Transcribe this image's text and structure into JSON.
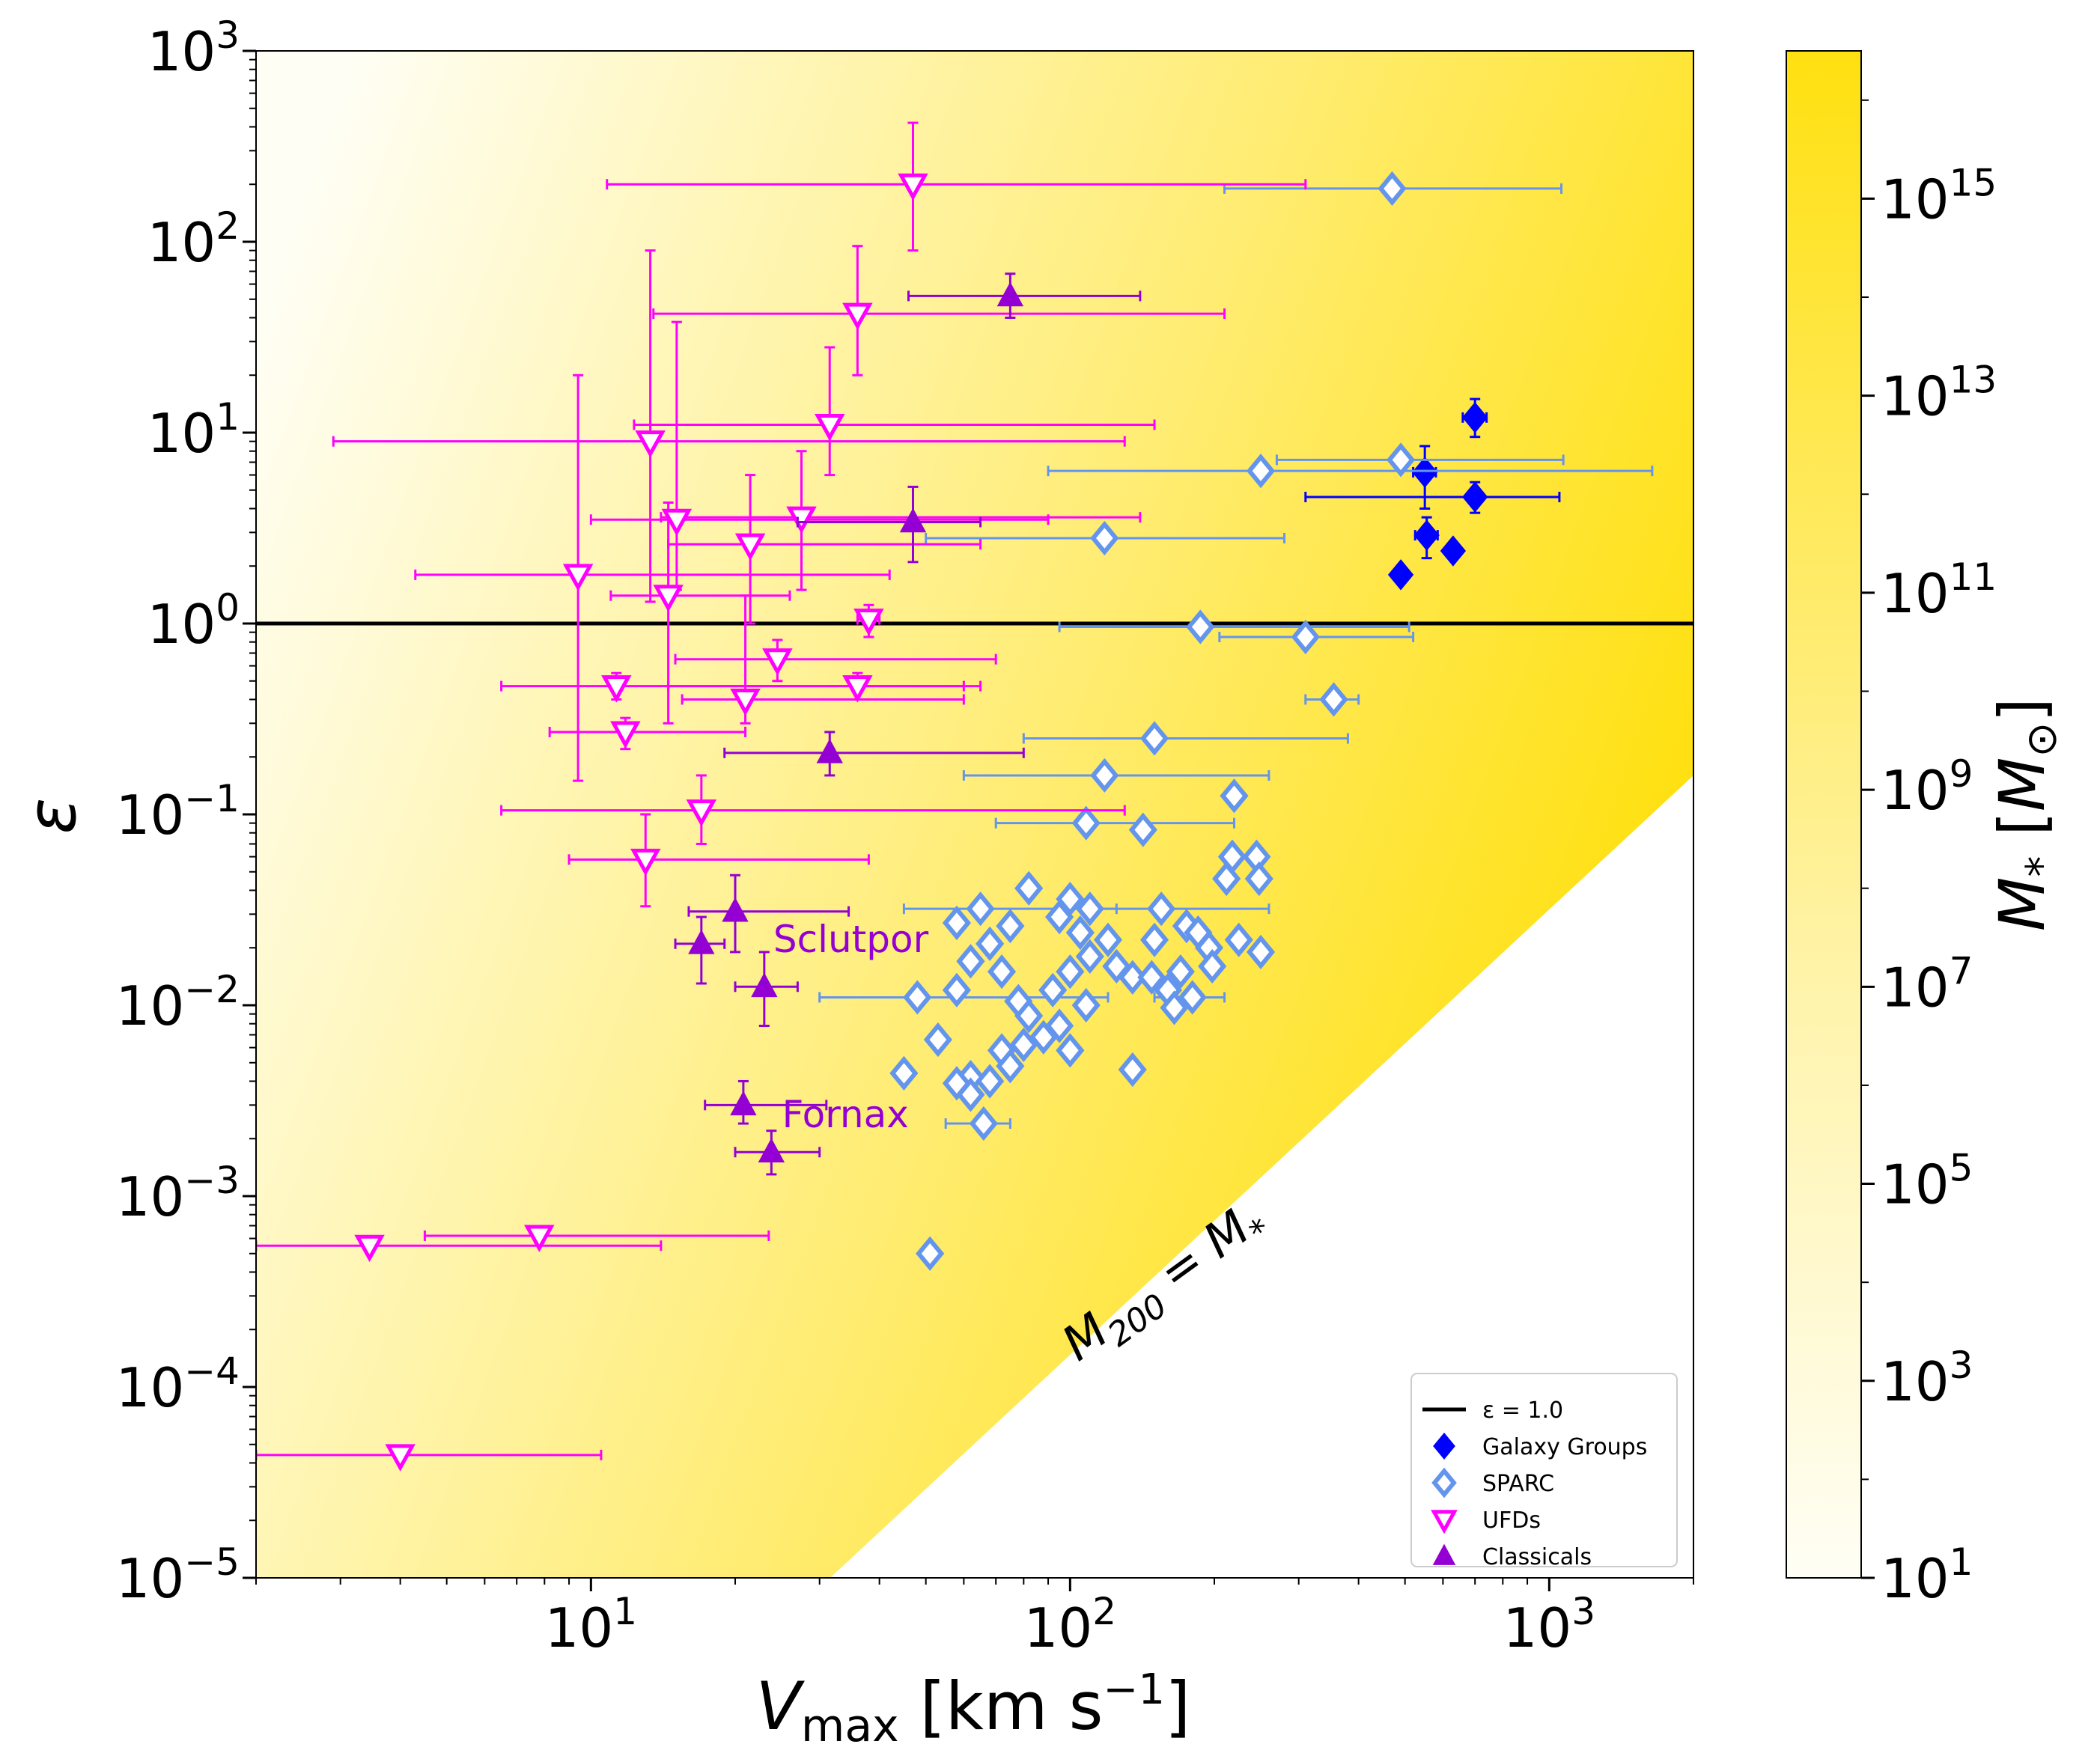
{
  "chart_data": {
    "type": "scatter",
    "title": "",
    "xlabel": {
      "main": "V",
      "sub": "max",
      "unit_open": " [km s",
      "unit_exp": "−1",
      "unit_close": "]"
    },
    "ylabel": "ε",
    "x_scale": "log",
    "y_scale": "log",
    "xlim": [
      2,
      2000
    ],
    "ylim": [
      1e-05,
      1000
    ],
    "x_ticks": [
      {
        "value": 10,
        "base": "10",
        "exp": "1"
      },
      {
        "value": 100,
        "base": "10",
        "exp": "2"
      },
      {
        "value": 1000,
        "base": "10",
        "exp": "3"
      }
    ],
    "y_ticks": [
      {
        "value": 1e-05,
        "base": "10",
        "exp": "−5"
      },
      {
        "value": 0.0001,
        "base": "10",
        "exp": "−4"
      },
      {
        "value": 0.001,
        "base": "10",
        "exp": "−3"
      },
      {
        "value": 0.01,
        "base": "10",
        "exp": "−2"
      },
      {
        "value": 0.1,
        "base": "10",
        "exp": "−1"
      },
      {
        "value": 1,
        "base": "10",
        "exp": "0"
      },
      {
        "value": 10,
        "base": "10",
        "exp": "1"
      },
      {
        "value": 100,
        "base": "10",
        "exp": "2"
      },
      {
        "value": 1000,
        "base": "10",
        "exp": "3"
      }
    ],
    "reference_line": {
      "y": 1.0,
      "label": "ε = 1.0",
      "color": "#000000"
    },
    "boundary": {
      "label": "M200 = M*",
      "label_main": "M",
      "label_sub1": "200",
      "label_eq": " = ",
      "label_main2": "M",
      "label_sub2": "*",
      "eps_at_vmax2": 1.6e-08,
      "eps_at_vmax2000": 0.16
    },
    "annotations": [
      {
        "text": "Sclutpor",
        "x": 23,
        "y": 0.019,
        "color": "#9400D3"
      },
      {
        "text": "Fornax",
        "x": 24,
        "y": 0.0023,
        "color": "#9400D3"
      }
    ],
    "colorbar": {
      "label": {
        "main": "M",
        "sub": "*",
        "unit_open": " [",
        "unit_main": "M",
        "unit_sub": "⊙",
        "unit_close": "]"
      },
      "log_min": 1,
      "log_max": 16.5,
      "color_low": "#fffef5",
      "color_high": "#ffe010",
      "ticks": [
        {
          "log": 1,
          "base": "10",
          "exp": "1"
        },
        {
          "log": 3,
          "base": "10",
          "exp": "3"
        },
        {
          "log": 5,
          "base": "10",
          "exp": "5"
        },
        {
          "log": 7,
          "base": "10",
          "exp": "7"
        },
        {
          "log": 9,
          "base": "10",
          "exp": "9"
        },
        {
          "log": 11,
          "base": "10",
          "exp": "11"
        },
        {
          "log": 13,
          "base": "10",
          "exp": "13"
        },
        {
          "log": 15,
          "base": "10",
          "exp": "15"
        }
      ]
    },
    "legend": {
      "position": "lower-right",
      "entries": [
        {
          "label": "ε = 1.0",
          "marker": "line",
          "color": "#000000"
        },
        {
          "label": "Galaxy Groups",
          "marker": "diamond-filled",
          "color": "#0000ff"
        },
        {
          "label": "SPARC",
          "marker": "diamond-open",
          "color": "#6495ed"
        },
        {
          "label": "UFDs",
          "marker": "triangle-down-open",
          "color": "#ff00ff"
        },
        {
          "label": "Classicals",
          "marker": "triangle-up-filled",
          "color": "#9400D3"
        }
      ]
    },
    "series": [
      {
        "name": "Galaxy Groups",
        "color": "#0000ff",
        "marker": "diamond-filled",
        "points": [
          {
            "x": 700,
            "y": 12,
            "xerr": [
              660,
              740
            ],
            "yerr": [
              9.5,
              15
            ]
          },
          {
            "x": 550,
            "y": 6.2,
            "xerr": [
              520,
              580
            ],
            "yerr": [
              4.0,
              8.5
            ]
          },
          {
            "x": 700,
            "y": 4.6,
            "xerr": [
              310,
              1050
            ],
            "yerr": [
              3.8,
              5.5
            ]
          },
          {
            "x": 555,
            "y": 2.9,
            "xerr": [
              525,
              585
            ],
            "yerr": [
              2.2,
              3.6
            ]
          },
          {
            "x": 630,
            "y": 2.4
          },
          {
            "x": 490,
            "y": 1.8
          }
        ]
      },
      {
        "name": "SPARC",
        "color": "#6495ed",
        "marker": "diamond-open",
        "points": [
          {
            "x": 470,
            "y": 190,
            "xerr": [
              210,
              1060
            ]
          },
          {
            "x": 490,
            "y": 7.2,
            "xerr": [
              270,
              1070
            ]
          },
          {
            "x": 250,
            "y": 6.3,
            "xerr": [
              90,
              1640
            ]
          },
          {
            "x": 118,
            "y": 2.8,
            "xerr": [
              50,
              280
            ]
          },
          {
            "x": 187,
            "y": 0.96,
            "xerr": [
              95,
              510
            ]
          },
          {
            "x": 310,
            "y": 0.85,
            "xerr": [
              205,
              520
            ]
          },
          {
            "x": 355,
            "y": 0.4,
            "xerr": [
              310,
              400
            ]
          },
          {
            "x": 150,
            "y": 0.25,
            "xerr": [
              80,
              380
            ]
          },
          {
            "x": 118,
            "y": 0.16,
            "xerr": [
              60,
              260
            ]
          },
          {
            "x": 220,
            "y": 0.125
          },
          {
            "x": 108,
            "y": 0.09,
            "xerr": [
              70,
              220
            ]
          },
          {
            "x": 142,
            "y": 0.083
          },
          {
            "x": 218,
            "y": 0.06
          },
          {
            "x": 245,
            "y": 0.06
          },
          {
            "x": 212,
            "y": 0.046
          },
          {
            "x": 248,
            "y": 0.046
          },
          {
            "x": 82,
            "y": 0.041
          },
          {
            "x": 100,
            "y": 0.036
          },
          {
            "x": 65,
            "y": 0.032,
            "xerr": [
              45,
              125
            ]
          },
          {
            "x": 110,
            "y": 0.032
          },
          {
            "x": 155,
            "y": 0.032,
            "xerr": [
              100,
              260
            ]
          },
          {
            "x": 58,
            "y": 0.027
          },
          {
            "x": 75,
            "y": 0.026
          },
          {
            "x": 95,
            "y": 0.029
          },
          {
            "x": 105,
            "y": 0.024
          },
          {
            "x": 120,
            "y": 0.022
          },
          {
            "x": 150,
            "y": 0.022
          },
          {
            "x": 175,
            "y": 0.026
          },
          {
            "x": 185,
            "y": 0.024
          },
          {
            "x": 225,
            "y": 0.022
          },
          {
            "x": 68,
            "y": 0.021
          },
          {
            "x": 62,
            "y": 0.017
          },
          {
            "x": 110,
            "y": 0.018
          },
          {
            "x": 125,
            "y": 0.016
          },
          {
            "x": 195,
            "y": 0.02
          },
          {
            "x": 250,
            "y": 0.019
          },
          {
            "x": 72,
            "y": 0.015
          },
          {
            "x": 100,
            "y": 0.015
          },
          {
            "x": 135,
            "y": 0.014
          },
          {
            "x": 148,
            "y": 0.014
          },
          {
            "x": 170,
            "y": 0.015
          },
          {
            "x": 198,
            "y": 0.016
          },
          {
            "x": 58,
            "y": 0.012
          },
          {
            "x": 92,
            "y": 0.012
          },
          {
            "x": 160,
            "y": 0.012
          },
          {
            "x": 180,
            "y": 0.011,
            "xerr": [
              150,
              210
            ]
          },
          {
            "x": 48,
            "y": 0.011,
            "xerr": [
              30,
              120
            ]
          },
          {
            "x": 78,
            "y": 0.0105
          },
          {
            "x": 108,
            "y": 0.01
          },
          {
            "x": 165,
            "y": 0.0097
          },
          {
            "x": 82,
            "y": 0.0088
          },
          {
            "x": 95,
            "y": 0.0078
          },
          {
            "x": 88,
            "y": 0.0068
          },
          {
            "x": 53,
            "y": 0.0066
          },
          {
            "x": 100,
            "y": 0.0058
          },
          {
            "x": 80,
            "y": 0.0062
          },
          {
            "x": 72,
            "y": 0.0058
          },
          {
            "x": 75,
            "y": 0.0048
          },
          {
            "x": 45,
            "y": 0.0044
          },
          {
            "x": 62,
            "y": 0.0042
          },
          {
            "x": 68,
            "y": 0.004
          },
          {
            "x": 58,
            "y": 0.0039
          },
          {
            "x": 135,
            "y": 0.0046
          },
          {
            "x": 62,
            "y": 0.0034
          },
          {
            "x": 66,
            "y": 0.0024,
            "xerr": [
              55,
              75
            ]
          },
          {
            "x": 51,
            "y": 0.0005
          }
        ]
      },
      {
        "name": "UFDs",
        "color": "#ff00ff",
        "marker": "triangle-down-open",
        "points": [
          {
            "x": 47,
            "y": 200,
            "xerr": [
              10.8,
              310
            ],
            "yerr": [
              90,
              420
            ]
          },
          {
            "x": 36,
            "y": 42,
            "xerr": [
              13.5,
              210
            ],
            "yerr": [
              20,
              95
            ]
          },
          {
            "x": 31.5,
            "y": 11,
            "xerr": [
              12.3,
              150
            ],
            "yerr": [
              6,
              28
            ]
          },
          {
            "x": 13.3,
            "y": 9,
            "xerr": [
              2.9,
              130
            ],
            "yerr": [
              1.3,
              90
            ]
          },
          {
            "x": 15.1,
            "y": 3.5,
            "xerr": [
              10,
              90
            ],
            "yerr": [
              1.5,
              38
            ]
          },
          {
            "x": 27.5,
            "y": 3.6,
            "xerr": [
              14,
              140
            ],
            "yerr": [
              1.5,
              8
            ]
          },
          {
            "x": 21.5,
            "y": 2.6,
            "xerr": [
              14.5,
              65
            ],
            "yerr": [
              1,
              6
            ]
          },
          {
            "x": 9.4,
            "y": 1.8,
            "xerr": [
              4.3,
              42
            ],
            "yerr": [
              0.15,
              20
            ]
          },
          {
            "x": 14.5,
            "y": 1.4,
            "xerr": [
              11,
              26
            ],
            "yerr": [
              0.3,
              4.3
            ]
          },
          {
            "x": 38,
            "y": 1.05,
            "xerr": [
              36,
              40
            ],
            "yerr": [
              0.85,
              1.25
            ]
          },
          {
            "x": 24.5,
            "y": 0.65,
            "xerr": [
              15,
              70
            ],
            "yerr": [
              0.5,
              0.82
            ]
          },
          {
            "x": 11.3,
            "y": 0.47,
            "xerr": [
              6.5,
              60
            ],
            "yerr": [
              0.4,
              0.55
            ]
          },
          {
            "x": 36,
            "y": 0.47,
            "xerr": [
              14.5,
              65
            ],
            "yerr": [
              0.4,
              0.55
            ]
          },
          {
            "x": 21,
            "y": 0.4,
            "xerr": [
              15.5,
              60
            ],
            "yerr": [
              0.3,
              1.4
            ]
          },
          {
            "x": 11.8,
            "y": 0.27,
            "xerr": [
              8.2,
              21
            ],
            "yerr": [
              0.22,
              0.32
            ]
          },
          {
            "x": 17,
            "y": 0.105,
            "xerr": [
              6.5,
              130
            ],
            "yerr": [
              0.07,
              0.16
            ]
          },
          {
            "x": 13,
            "y": 0.058,
            "xerr": [
              9,
              38
            ],
            "yerr": [
              0.033,
              0.1
            ]
          },
          {
            "x": 7.8,
            "y": 0.00062,
            "xerr": [
              4.5,
              23.5
            ],
            "yerr": [
              0.00057,
              0.00067
            ]
          },
          {
            "x": 3.45,
            "y": 0.00055,
            "xerr": [
              2,
              14
            ],
            "yerr": [
              0.00051,
              0.00059
            ]
          },
          {
            "x": 4,
            "y": 4.4e-05,
            "xerr": [
              2,
              10.5
            ]
          }
        ]
      },
      {
        "name": "Classicals",
        "color": "#9400D3",
        "marker": "triangle-up-filled",
        "points": [
          {
            "x": 75,
            "y": 52,
            "xerr": [
              46,
              140
            ],
            "yerr": [
              40,
              68
            ]
          },
          {
            "x": 47,
            "y": 3.4,
            "xerr": [
              27,
              65
            ],
            "yerr": [
              2.1,
              5.2
            ]
          },
          {
            "x": 31.5,
            "y": 0.21,
            "xerr": [
              19,
              80
            ],
            "yerr": [
              0.16,
              0.27
            ]
          },
          {
            "x": 20,
            "y": 0.031,
            "xerr": [
              16,
              34.5
            ],
            "yerr": [
              0.019,
              0.048
            ]
          },
          {
            "x": 17,
            "y": 0.021,
            "xerr": [
              15,
              19
            ],
            "yerr": [
              0.013,
              0.029
            ]
          },
          {
            "x": 23,
            "y": 0.0125,
            "xerr": [
              20,
              27
            ],
            "yerr": [
              0.0078,
              0.019
            ]
          },
          {
            "x": 20.8,
            "y": 0.003,
            "xerr": [
              17.3,
              31
            ],
            "yerr": [
              0.0024,
              0.004
            ]
          },
          {
            "x": 23.8,
            "y": 0.0017,
            "xerr": [
              20,
              30
            ],
            "yerr": [
              0.0013,
              0.0022
            ]
          }
        ]
      }
    ]
  }
}
